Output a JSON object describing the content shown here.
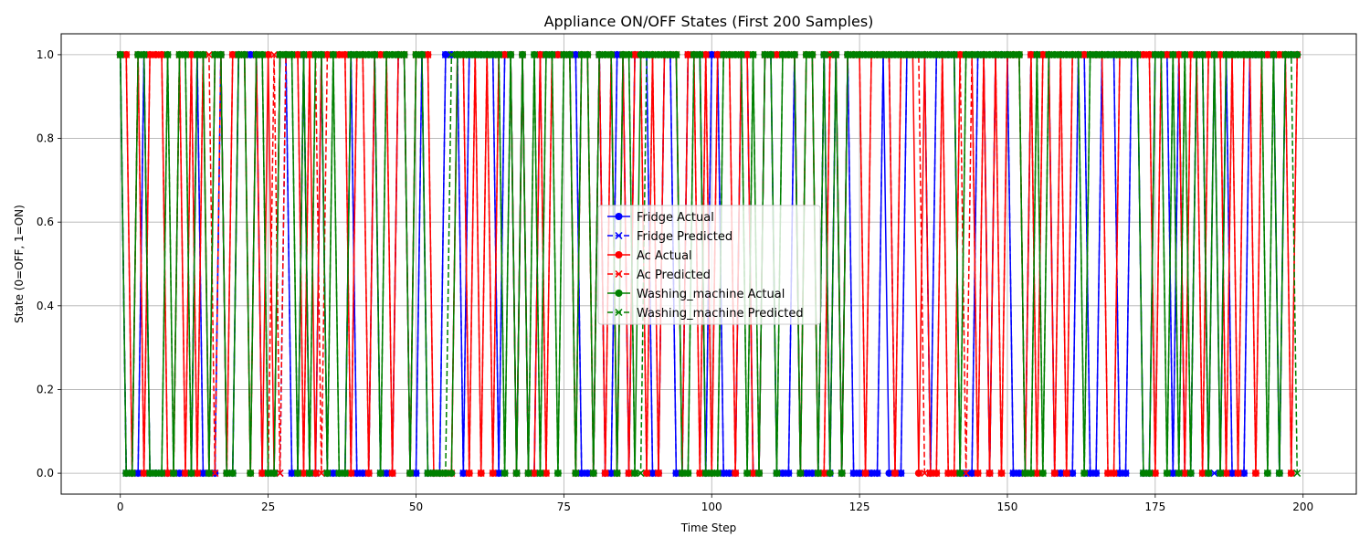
{
  "chart_data": {
    "type": "line",
    "title": "Appliance ON/OFF States (First 200 Samples)",
    "xlabel": "Time Step",
    "ylabel": "State (0=OFF, 1=ON)",
    "xlim": [
      -10,
      209
    ],
    "ylim": [
      -0.05,
      1.05
    ],
    "x_ticks": [
      0,
      25,
      50,
      75,
      100,
      125,
      150,
      175,
      200
    ],
    "y_ticks": [
      0.0,
      0.2,
      0.4,
      0.6,
      0.8,
      1.0
    ],
    "y_tick_labels": [
      "0.0",
      "0.2",
      "0.4",
      "0.6",
      "0.8",
      "1.0"
    ],
    "grid": true,
    "legend_position": "center",
    "x": "0..199 (integer time steps)",
    "series": [
      {
        "name": "Fridge Actual",
        "color": "#0000ff",
        "style": "solid",
        "marker": "circle",
        "values": "1,0,0,0,1,0,0,0,0,0,0,0,0,1,0,0,0,1,0,0,1,1,1,1,0,0,0,1,1,0,0,1,0,0,1,0,0,0,0,1,0,0,0,1,0,0,0,1,1,0,0,1,0,0,0,1,1,1,0,1,1,1,1,1,0,1,1,0,1,0,0,1,1,1,1,1,1,1,0,0,0,1,0,0,1,1,0,1,1,1,0,0,1,1,0,0,1,1,1,0,1,1,0,0,0,1,1,0,0,1,1,0,0,0,1,0,0,0,0,1,0,1,0,1,0,0,0,0,0,1,0,0,0,1,1,1,1,0,1,1,1,1,0,0,0,1,1,0,1,1,1,0,0,0,1,1,1,1,0,0,0,0,1,1,0,0,1,1,1,0,0,1,1,0,0,1,1,1,0,1,0,0,1,1,0,1,0,1,0,0,0,1,1,1,1,1,0,1,1,1"
      },
      {
        "name": "Fridge Predicted",
        "color": "#0000ff",
        "style": "dashed",
        "marker": "x",
        "values": "1,0,0,0,1,0,0,0,0,0,0,0,0,1,0,0,0,1,0,0,1,1,1,1,0,0,0,0,1,0,0,1,0,0,1,0,0,0,0,1,0,0,0,1,0,0,0,1,1,0,0,1,0,0,0,1,1,1,0,1,1,1,1,1,0,1,1,0,1,0,0,1,1,1,1,1,1,1,0,0,0,1,0,0,1,1,0,1,1,1,0,0,1,1,0,0,1,1,1,0,1,1,0,0,0,1,1,0,0,1,1,0,0,0,1,0,0,0,0,1,0,1,0,1,0,0,0,0,0,1,1,0,0,1,1,1,1,0,1,1,1,1,0,0,0,1,1,0,1,1,1,0,0,0,1,1,1,1,0,0,0,0,1,1,0,0,1,1,1,0,0,1,1,0,0,1,1,1,0,1,0,0,1,1,0,0,0,1,0,0,0,1,1,1,1,1,0,1,1,1"
      },
      {
        "name": "Ac Actual",
        "color": "#ff0000",
        "style": "solid",
        "marker": "circle",
        "values": "1,1,0,1,0,1,1,1,0,0,1,0,1,0,1,0,1,1,0,1,1,1,0,1,0,1,0,1,1,1,1,0,1,0,1,1,1,1,1,0,1,1,0,1,1,1,0,1,1,0,1,1,1,0,0,0,0,1,1,0,1,0,1,0,1,1,1,0,1,0,0,1,0,1,1,1,1,0,1,1,0,1,0,1,0,1,0,1,1,0,1,0,1,1,1,0,1,1,0,1,0,1,1,1,0,1,1,0,0,1,1,1,1,1,1,0,1,1,0,0,1,1,0,1,1,1,0,1,1,1,1,0,1,1,1,0,1,0,0,1,0,0,1,1,1,0,1,0,1,0,1,1,1,0,1,0,1,1,0,1,0,1,1,1,1,1,1,0,0,1,1,1,1,1,1,0,1,1,1,1,0,1,1,0,1,1,1,0,1,0,1,1,0,1,1,1,1,1,0,1"
      },
      {
        "name": "Ac Predicted",
        "color": "#ff0000",
        "style": "dashed",
        "marker": "x",
        "values": "1,1,0,1,0,1,1,1,0,0,1,0,1,0,1,1,0,1,0,1,1,1,0,1,0,0,1,0,1,1,1,0,1,1,0,1,1,1,1,0,1,1,0,1,1,1,0,1,1,0,1,1,1,0,0,0,0,1,1,0,1,0,1,0,1,1,1,0,1,0,0,1,0,1,1,1,1,0,1,1,0,1,0,1,0,1,0,1,1,0,1,0,1,1,1,0,1,1,0,1,0,1,1,1,0,1,1,0,0,1,1,1,1,1,1,0,1,1,0,0,1,1,0,1,1,1,0,1,1,1,1,0,1,1,1,1,0,0,0,1,0,0,1,0,1,0,1,0,1,0,1,1,1,0,1,0,1,1,0,1,0,1,1,1,1,1,1,0,0,1,1,1,1,1,1,0,1,1,1,1,0,1,1,0,1,1,1,0,1,0,1,1,0,1,1,1,1,1,0,1"
      },
      {
        "name": "Washing_machine Actual",
        "color": "#008000",
        "style": "solid",
        "marker": "circle",
        "values": "1,0,0,1,1,0,0,0,1,0,1,1,0,1,1,0,1,1,0,0,1,1,0,1,1,0,0,1,1,1,0,1,0,1,1,0,1,0,0,1,1,1,1,1,0,1,1,1,1,0,1,1,0,0,0,0,0,1,1,1,1,1,1,1,1,0,1,0,1,0,1,0,1,1,0,1,1,0,1,1,0,1,1,1,0,1,1,0,1,1,1,1,1,1,1,0,0,1,1,0,0,0,1,1,1,1,0,1,0,1,1,0,1,1,1,0,1,1,0,1,0,1,0,1,1,1,1,1,1,1,1,1,1,1,1,1,1,1,1,1,1,1,0,1,1,1,1,1,1,1,1,1,1,0,0,1,0,1,1,1,1,1,1,0,1,1,1,1,1,1,1,1,1,0,0,1,1,0,1,0,1,0,1,1,0,1,0,1,1,1,1,1,1,1,0,1,0,1,1,1"
      },
      {
        "name": "Washing_machine Predicted",
        "color": "#008000",
        "style": "dashed",
        "marker": "x",
        "values": "1,0,0,1,1,0,0,0,1,0,1,1,0,1,1,0,1,1,0,0,1,1,0,1,1,0,0,1,1,1,0,1,0,1,1,0,1,0,0,1,1,1,1,1,0,1,1,1,1,0,1,1,0,0,0,0,1,1,1,1,1,1,1,1,1,0,1,0,1,0,1,0,1,1,0,1,1,0,1,1,0,1,1,1,0,1,1,0,0,1,1,1,1,1,1,0,0,1,1,0,0,0,1,1,1,1,0,1,0,1,1,0,1,1,1,0,1,1,0,1,1,1,0,1,1,1,1,1,1,1,1,1,1,1,1,1,1,1,1,1,1,1,0,1,1,1,1,1,1,1,1,1,1,0,0,1,0,1,1,1,1,1,1,0,1,1,1,1,1,1,1,1,1,0,0,1,1,0,1,0,1,0,1,1,0,1,0,1,1,1,1,1,1,1,0,1,0,1,1,0"
      }
    ]
  }
}
